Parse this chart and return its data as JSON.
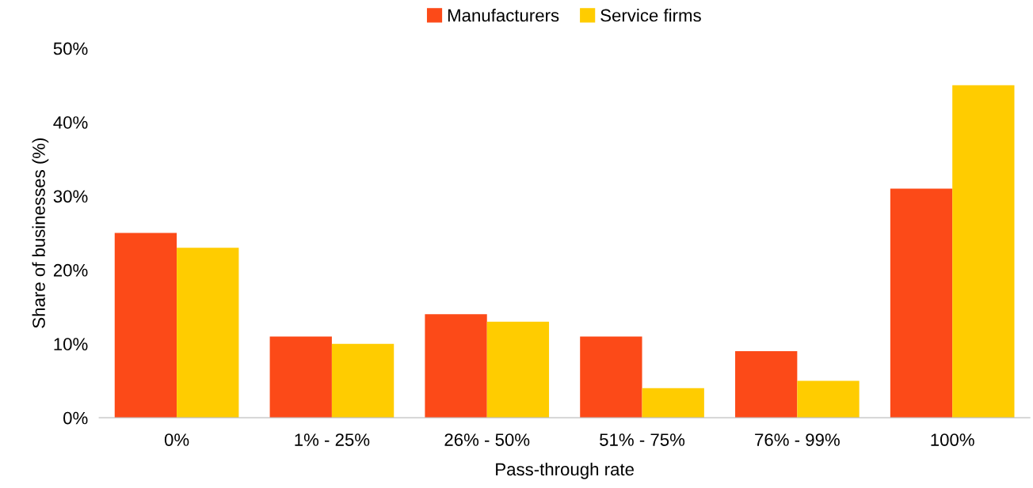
{
  "chart_data": {
    "type": "bar",
    "xlabel": "Pass-through rate",
    "ylabel": "Share of businesses (%)",
    "categories": [
      "0%",
      "1% - 25%",
      "26% - 50%",
      "51% - 75%",
      "76% - 99%",
      "100%"
    ],
    "series": [
      {
        "name": "Manufacturers",
        "color": "#fc4a18",
        "values": [
          25,
          11,
          14,
          11,
          9,
          31
        ]
      },
      {
        "name": "Service firms",
        "color": "#ffcc00",
        "values": [
          23,
          10,
          13,
          4,
          5,
          45
        ]
      }
    ],
    "ylim": [
      0,
      50
    ],
    "yticks": [
      {
        "value": 0,
        "label": "0%"
      },
      {
        "value": 10,
        "label": "10%"
      },
      {
        "value": 20,
        "label": "20%"
      },
      {
        "value": 30,
        "label": "30%"
      },
      {
        "value": 40,
        "label": "40%"
      },
      {
        "value": 50,
        "label": "50%"
      }
    ],
    "grid": false,
    "legend": "top"
  }
}
